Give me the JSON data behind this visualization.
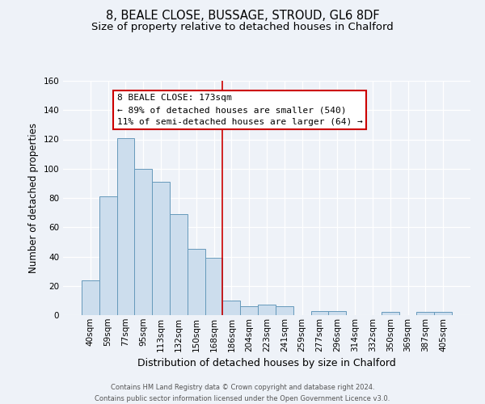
{
  "title": "8, BEALE CLOSE, BUSSAGE, STROUD, GL6 8DF",
  "subtitle": "Size of property relative to detached houses in Chalford",
  "xlabel": "Distribution of detached houses by size in Chalford",
  "ylabel": "Number of detached properties",
  "bar_labels": [
    "40sqm",
    "59sqm",
    "77sqm",
    "95sqm",
    "113sqm",
    "132sqm",
    "150sqm",
    "168sqm",
    "186sqm",
    "204sqm",
    "223sqm",
    "241sqm",
    "259sqm",
    "277sqm",
    "296sqm",
    "314sqm",
    "332sqm",
    "350sqm",
    "369sqm",
    "387sqm",
    "405sqm"
  ],
  "bar_heights": [
    24,
    81,
    121,
    100,
    91,
    69,
    45,
    39,
    10,
    6,
    7,
    6,
    0,
    3,
    3,
    0,
    0,
    2,
    0,
    2,
    2
  ],
  "bar_color": "#ccdded",
  "bar_edge_color": "#6699bb",
  "ylim": [
    0,
    160
  ],
  "yticks": [
    0,
    20,
    40,
    60,
    80,
    100,
    120,
    140,
    160
  ],
  "vline_x": 7.5,
  "vline_color": "#cc0000",
  "annotation_box_text": "8 BEALE CLOSE: 173sqm\n← 89% of detached houses are smaller (540)\n11% of semi-detached houses are larger (64) →",
  "footer_line1": "Contains HM Land Registry data © Crown copyright and database right 2024.",
  "footer_line2": "Contains public sector information licensed under the Open Government Licence v3.0.",
  "bg_color": "#eef2f8",
  "grid_color": "#ffffff",
  "title_fontsize": 10.5,
  "subtitle_fontsize": 9.5,
  "xlabel_fontsize": 9,
  "ylabel_fontsize": 8.5,
  "tick_fontsize": 7.5,
  "footer_fontsize": 6,
  "annot_fontsize": 8
}
